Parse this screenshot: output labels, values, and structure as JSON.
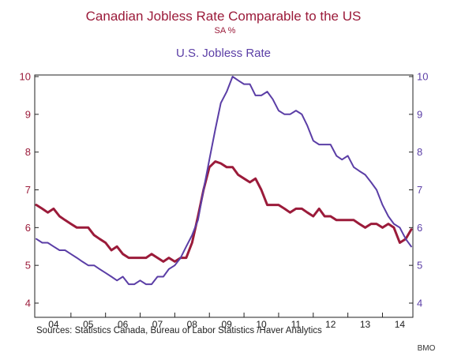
{
  "header": {
    "title": "Canadian Jobless Rate Comparable to the US",
    "subtitle": "SA   %",
    "second_series_label": "U.S. Jobless Rate"
  },
  "footer": {
    "sources": "Sources:  Statistics Canada, Bureau of Labor Statistics /Haver Analytics",
    "credit": "BMO"
  },
  "colors": {
    "canada": "#9b1b3a",
    "us": "#5b3ea6",
    "axis": "#222222"
  },
  "chart_data": {
    "type": "line",
    "title": "Canadian Jobless Rate Comparable to the US",
    "subtitle": "SA   %",
    "x_range": [
      2004.0,
      2014.833
    ],
    "ylim": [
      4,
      10
    ],
    "y_ticks": [
      "4",
      "5",
      "6",
      "7",
      "8",
      "9",
      "10"
    ],
    "x_ticks": [
      "04",
      "05",
      "06",
      "07",
      "08",
      "09",
      "10",
      "11",
      "12",
      "13",
      "14"
    ],
    "grid": false,
    "legend": "none",
    "series": [
      {
        "name": "Canadian Jobless Rate Comparable to the US",
        "axis": "left",
        "color": "#9b1b3a",
        "x": [
          2004.0,
          2004.17,
          2004.33,
          2004.5,
          2004.67,
          2004.83,
          2005.0,
          2005.17,
          2005.33,
          2005.5,
          2005.67,
          2005.83,
          2006.0,
          2006.17,
          2006.33,
          2006.5,
          2006.67,
          2006.83,
          2007.0,
          2007.17,
          2007.33,
          2007.5,
          2007.67,
          2007.83,
          2008.0,
          2008.17,
          2008.33,
          2008.5,
          2008.67,
          2008.83,
          2009.0,
          2009.17,
          2009.33,
          2009.5,
          2009.67,
          2009.83,
          2010.0,
          2010.17,
          2010.33,
          2010.5,
          2010.67,
          2010.83,
          2011.0,
          2011.17,
          2011.33,
          2011.5,
          2011.67,
          2011.83,
          2012.0,
          2012.17,
          2012.33,
          2012.5,
          2012.67,
          2012.83,
          2013.0,
          2013.17,
          2013.33,
          2013.5,
          2013.67,
          2013.83,
          2014.0,
          2014.17,
          2014.33,
          2014.5,
          2014.67,
          2014.83
        ],
        "values": [
          6.6,
          6.5,
          6.4,
          6.5,
          6.3,
          6.2,
          6.1,
          6.0,
          6.0,
          6.0,
          5.8,
          5.7,
          5.6,
          5.4,
          5.5,
          5.3,
          5.2,
          5.2,
          5.2,
          5.2,
          5.3,
          5.2,
          5.1,
          5.2,
          5.1,
          5.2,
          5.2,
          5.6,
          6.3,
          7.0,
          7.6,
          7.75,
          7.7,
          7.6,
          7.6,
          7.4,
          7.3,
          7.2,
          7.3,
          7.0,
          6.6,
          6.6,
          6.6,
          6.5,
          6.4,
          6.5,
          6.5,
          6.4,
          6.3,
          6.5,
          6.3,
          6.3,
          6.2,
          6.2,
          6.2,
          6.2,
          6.1,
          6.0,
          6.1,
          6.1,
          6.0,
          6.1,
          6.0,
          5.6,
          5.7,
          5.95
        ]
      },
      {
        "name": "U.S. Jobless Rate",
        "axis": "right",
        "color": "#5b3ea6",
        "x": [
          2004.0,
          2004.17,
          2004.33,
          2004.5,
          2004.67,
          2004.83,
          2005.0,
          2005.17,
          2005.33,
          2005.5,
          2005.67,
          2005.83,
          2006.0,
          2006.17,
          2006.33,
          2006.5,
          2006.67,
          2006.83,
          2007.0,
          2007.17,
          2007.33,
          2007.5,
          2007.67,
          2007.83,
          2008.0,
          2008.17,
          2008.33,
          2008.5,
          2008.67,
          2008.83,
          2009.0,
          2009.17,
          2009.33,
          2009.5,
          2009.67,
          2009.83,
          2010.0,
          2010.17,
          2010.33,
          2010.5,
          2010.67,
          2010.83,
          2011.0,
          2011.17,
          2011.33,
          2011.5,
          2011.67,
          2011.83,
          2012.0,
          2012.17,
          2012.33,
          2012.5,
          2012.67,
          2012.83,
          2013.0,
          2013.17,
          2013.33,
          2013.5,
          2013.67,
          2013.83,
          2014.0,
          2014.17,
          2014.33,
          2014.5,
          2014.67,
          2014.83
        ],
        "values": [
          5.7,
          5.6,
          5.6,
          5.5,
          5.4,
          5.4,
          5.3,
          5.2,
          5.1,
          5.0,
          5.0,
          4.9,
          4.8,
          4.7,
          4.6,
          4.7,
          4.5,
          4.5,
          4.6,
          4.5,
          4.5,
          4.7,
          4.7,
          4.9,
          5.0,
          5.2,
          5.5,
          5.8,
          6.2,
          7.0,
          7.8,
          8.6,
          9.3,
          9.6,
          10.0,
          9.9,
          9.8,
          9.8,
          9.5,
          9.5,
          9.6,
          9.4,
          9.1,
          9.0,
          9.0,
          9.1,
          9.0,
          8.7,
          8.3,
          8.2,
          8.2,
          8.2,
          7.9,
          7.8,
          7.9,
          7.6,
          7.5,
          7.4,
          7.2,
          7.0,
          6.6,
          6.3,
          6.1,
          6.0,
          5.7,
          5.5
        ]
      }
    ]
  }
}
